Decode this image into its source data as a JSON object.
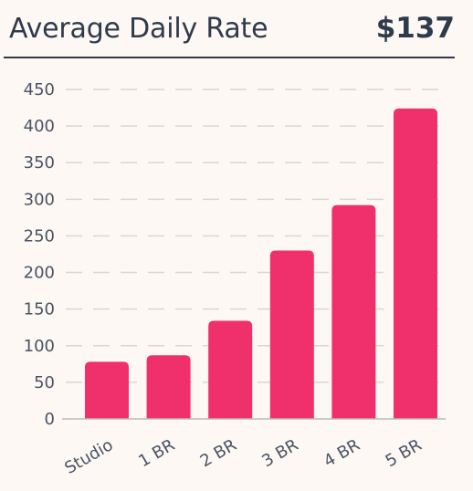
{
  "header": {
    "title": "Average Daily Rate",
    "value": "$137"
  },
  "colors": {
    "bar": "#f0306c",
    "grid": "#d6d6d6",
    "text": "#2f3a4c",
    "background": "#fdf8f3"
  },
  "chart_data": {
    "type": "bar",
    "categories": [
      "Studio",
      "1 BR",
      "2 BR",
      "3 BR",
      "4 BR",
      "5 BR"
    ],
    "values": [
      78,
      87,
      134,
      230,
      292,
      424
    ],
    "xlabel": "",
    "ylabel": "",
    "ylim": [
      0,
      450
    ],
    "yticks": [
      0,
      50,
      100,
      150,
      200,
      250,
      300,
      350,
      400,
      450
    ],
    "grid": true,
    "legend": "none"
  }
}
